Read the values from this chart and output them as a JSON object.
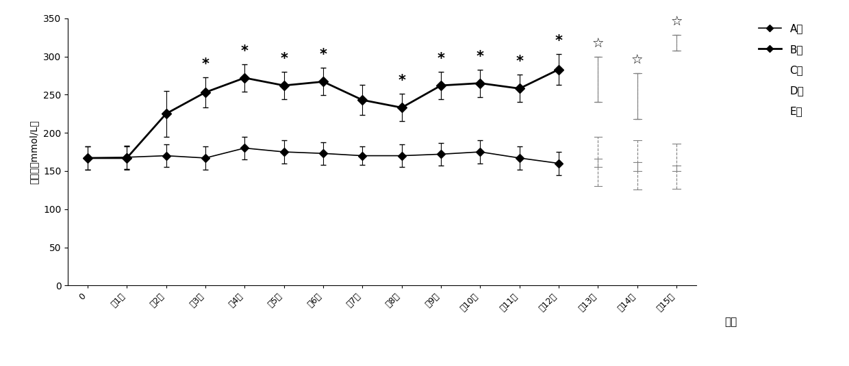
{
  "x_labels": [
    "0",
    "第1周",
    "第2周",
    "第3周",
    "第4周",
    "第5周",
    "第6周",
    "第7周",
    "第8周",
    "第9周",
    "第10周",
    "第11周",
    "第12周",
    "第13周",
    "第14周",
    "第15周"
  ],
  "x_positions": [
    0,
    1,
    2,
    3,
    4,
    5,
    6,
    7,
    8,
    9,
    10,
    11,
    12,
    13,
    14,
    15
  ],
  "A_values": [
    167,
    168,
    170,
    167,
    180,
    175,
    173,
    170,
    170,
    172,
    175,
    167,
    160,
    null,
    null,
    null
  ],
  "A_err": [
    15,
    15,
    15,
    15,
    15,
    15,
    15,
    12,
    15,
    15,
    15,
    15,
    15,
    null,
    null,
    null
  ],
  "B_values": [
    167,
    167,
    225,
    253,
    272,
    262,
    267,
    243,
    233,
    262,
    265,
    258,
    283,
    null,
    null,
    null
  ],
  "B_err": [
    15,
    15,
    30,
    20,
    18,
    18,
    18,
    20,
    18,
    18,
    18,
    18,
    20,
    null,
    null,
    null
  ],
  "C_values": [
    null,
    null,
    null,
    null,
    null,
    null,
    null,
    null,
    null,
    null,
    null,
    null,
    null,
    270,
    248,
    318
  ],
  "C_err": [
    null,
    null,
    null,
    null,
    null,
    null,
    null,
    null,
    null,
    null,
    null,
    null,
    null,
    30,
    30,
    10
  ],
  "D_values": [
    null,
    null,
    null,
    null,
    null,
    null,
    null,
    null,
    null,
    null,
    null,
    null,
    null,
    175,
    170,
    168
  ],
  "D_err": [
    null,
    null,
    null,
    null,
    null,
    null,
    null,
    null,
    null,
    null,
    null,
    null,
    null,
    20,
    20,
    18
  ],
  "E_values": [
    null,
    null,
    null,
    null,
    null,
    null,
    null,
    null,
    null,
    null,
    null,
    null,
    null,
    148,
    144,
    142
  ],
  "E_err": [
    null,
    null,
    null,
    null,
    null,
    null,
    null,
    null,
    null,
    null,
    null,
    null,
    null,
    18,
    18,
    15
  ],
  "significance_star": [
    3,
    4,
    5,
    6,
    8,
    9,
    10,
    11,
    12
  ],
  "significance_hollow_star": [
    13,
    14,
    15
  ],
  "ylabel": "血尿酸（mmol/L）",
  "xlabel_label": "时间",
  "ylim": [
    0,
    350
  ],
  "yticks": [
    0,
    50,
    100,
    150,
    200,
    250,
    300,
    350
  ],
  "legend_A": "A组",
  "legend_B": "B组",
  "legend_C": "C组",
  "legend_D": "D组",
  "legend_E": "E组",
  "fig_width": 12.4,
  "fig_height": 5.35
}
